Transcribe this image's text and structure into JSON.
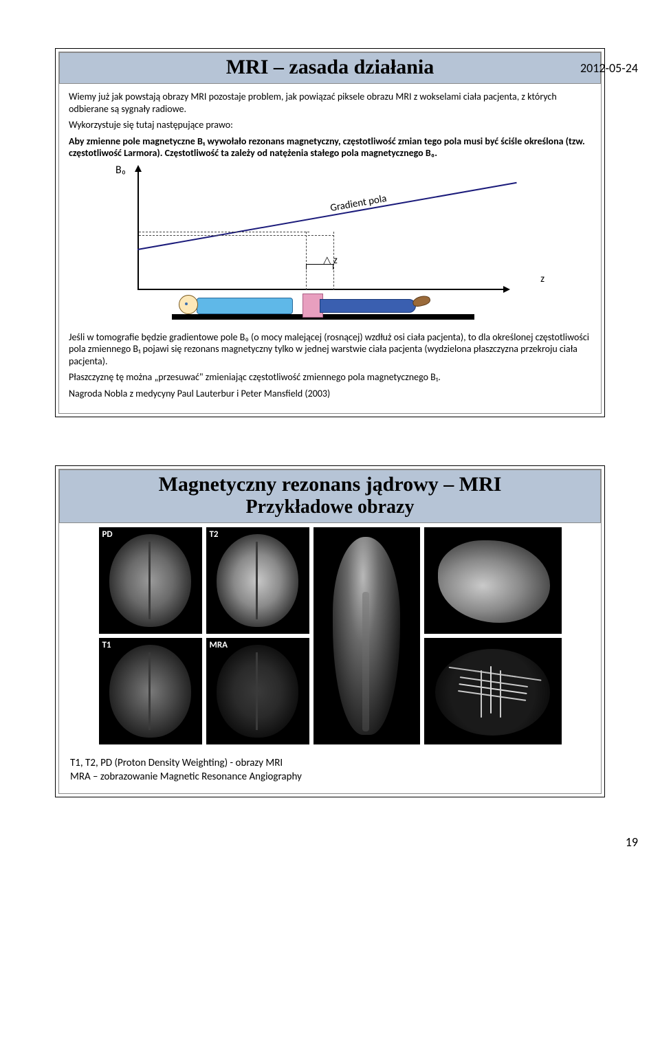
{
  "page": {
    "date": "2012-05-24",
    "number": "19"
  },
  "slide1": {
    "title": "MRI – zasada działania",
    "intro": "Wiemy już jak powstają obrazy MRI pozostaje problem, jak powiązać piksele obrazu MRI z wokselami ciała pacjenta, z których odbierane są sygnały radiowe.",
    "law_intro": "Wykorzystuje się tutaj następujące prawo:",
    "law_line1": "Aby zmienne pole magnetyczne B₁ wywołało rezonans magnetyczny, częstotliwość zmian tego pola musi być ściśle określona (tzw. częstotliwość Larmora). Częstotliwość ta zależy od natężenia stałego pola magnetycznego B₀.",
    "diagram": {
      "y_axis_label": "B₀",
      "x_axis_label": "z",
      "delta_label": "△ z",
      "gradient_label": "Gradient pola",
      "line_color": "#1a1a7a",
      "patient_colors": {
        "head": "#fce8b8",
        "torso": "#5fb8e8",
        "slice": "#e89fbf",
        "legs": "#3a5fb0",
        "foot": "#9a6a3a"
      }
    },
    "bottom_p1": "Jeśli w tomografie będzie gradientowe pole B₀ (o mocy malejącej (rosnącej) wzdłuż osi ciała pacjenta), to dla określonej częstotliwości pola zmiennego B₁ pojawi się rezonans magnetyczny tylko w jednej warstwie ciała pacjenta (wydzielona płaszczyzna przekroju ciała pacjenta).",
    "bottom_p2": "Płaszczyznę tę można „przesuwać\" zmieniając częstotliwość zmiennego pola magnetycznego B₁.",
    "bottom_p3": "Nagroda Nobla z medycyny Paul Lauterbur i Peter Mansfield (2003)"
  },
  "slide2": {
    "title_line1": "Magnetyczny rezonans jądrowy – MRI",
    "title_line2": "Przykładowe obrazy",
    "labels": {
      "pd": "PD",
      "t2": "T2",
      "t1": "T1",
      "mra": "MRA"
    },
    "caption1": "T1, T2, PD (Proton Density Weighting) - obrazy MRI",
    "caption2": "MRA – zobrazowanie Magnetic Resonance Angiography",
    "title_bar_bg": "#b6c4d6"
  }
}
